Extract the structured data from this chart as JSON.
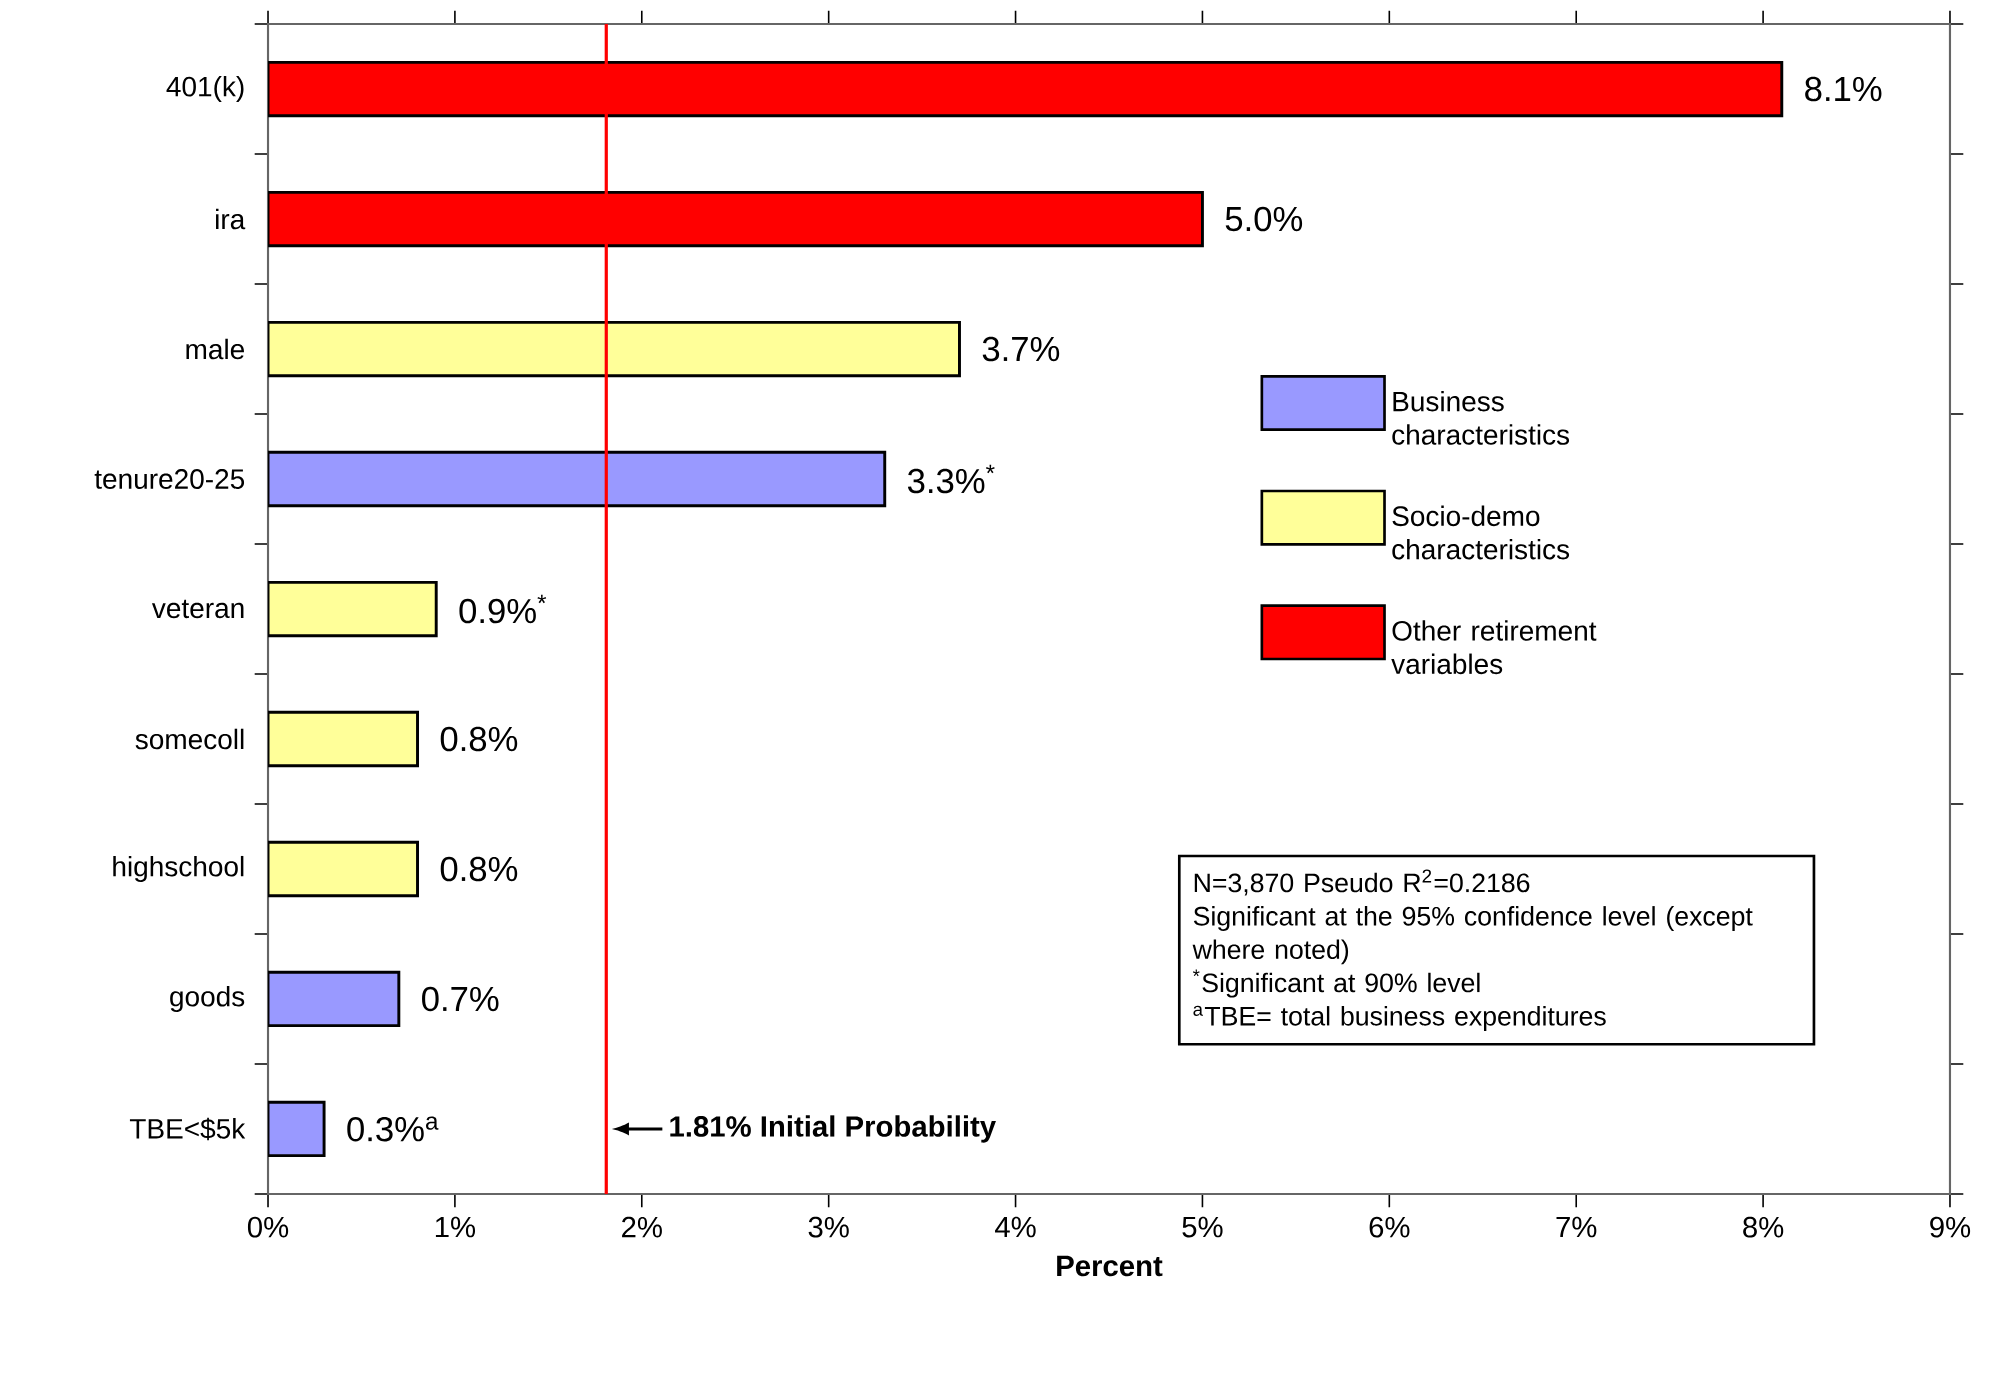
{
  "chart_data": {
    "type": "bar",
    "orientation": "horizontal",
    "xlabel": "Percent",
    "categories": [
      "401(k)",
      "ira",
      "male",
      "tenure20-25",
      "veteran",
      "somecoll",
      "highschool",
      "goods",
      "TBE<$5k"
    ],
    "series": [
      {
        "name": "Business characteristics",
        "color": "#9999ff",
        "values": [
          null,
          null,
          null,
          3.3,
          null,
          null,
          null,
          0.7,
          0.3
        ],
        "value_labels": [
          null,
          null,
          null,
          "3.3%$^{*}$",
          null,
          null,
          null,
          "0.7%",
          "0.3%$^{a}$"
        ]
      },
      {
        "name": "Socio-demo characteristics",
        "color": "#ffff99",
        "values": [
          null,
          null,
          3.7,
          null,
          0.9,
          0.8,
          0.8,
          null,
          null
        ],
        "value_labels": [
          null,
          null,
          "3.7%",
          null,
          "0.9%$^{*}$",
          "0.8%",
          "0.8%",
          null,
          null
        ]
      },
      {
        "name": "Other retirement variables",
        "color": "#ff0000",
        "values": [
          8.1,
          5.0,
          null,
          null,
          null,
          null,
          null,
          null,
          null
        ],
        "value_labels": [
          "8.1%",
          "5.0%",
          null,
          null,
          null,
          null,
          null,
          null,
          null
        ]
      }
    ],
    "xlim": [
      0,
      9
    ],
    "xticks": [
      {
        "value": 0,
        "label": "0%"
      },
      {
        "value": 1,
        "label": "1%"
      },
      {
        "value": 2,
        "label": "2%"
      },
      {
        "value": 3,
        "label": "3%"
      },
      {
        "value": 4,
        "label": "4%"
      },
      {
        "value": 5,
        "label": "5%"
      },
      {
        "value": 6,
        "label": "6%"
      },
      {
        "value": 7,
        "label": "7%"
      },
      {
        "value": 8,
        "label": "8%"
      },
      {
        "value": 9,
        "label": "9%"
      }
    ],
    "ref_lines": [
      {
        "axis": "x",
        "value": 1.81,
        "label": "1.81% Initial Probability",
        "color": "#ff0000"
      }
    ],
    "annotations": [
      "N=3,870  Pseudo R$^{2}$=0.2186",
      "Significant at the 95% confidence level (except where noted)",
      "$^{*}$Significant at 90% level",
      "$^{a}$TBE= total business expenditures"
    ],
    "legend": "right",
    "grid": false
  }
}
